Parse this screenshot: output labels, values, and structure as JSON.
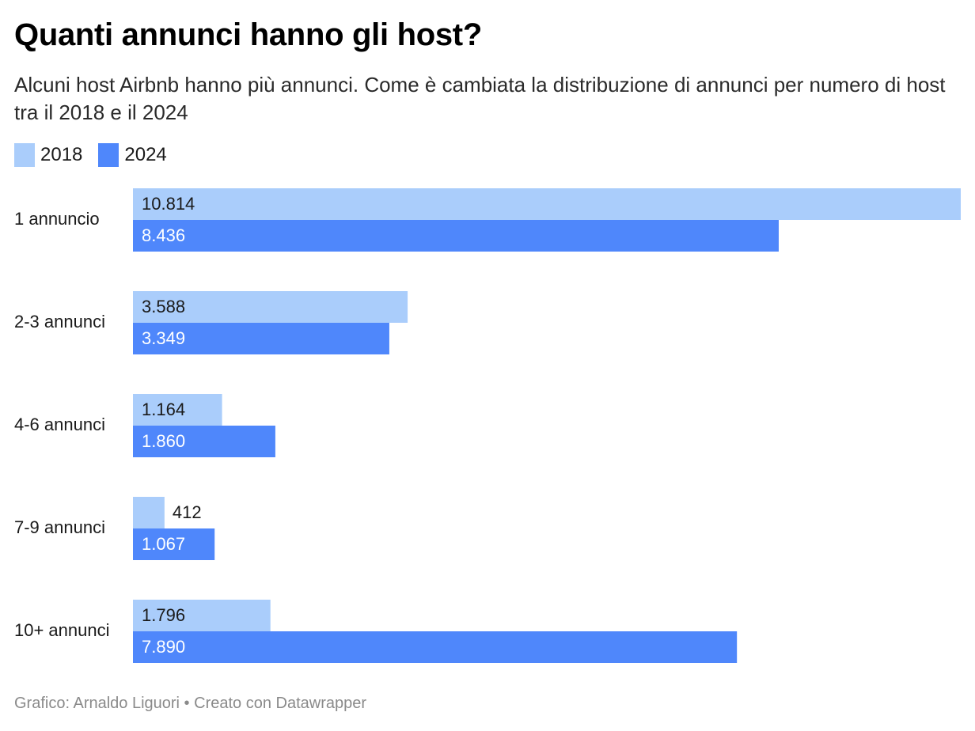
{
  "header": {
    "title": "Quanti annunci hanno gli host?",
    "subtitle": "Alcuni host Airbnb hanno più annunci. Come è cambiata la distribuzione di annunci per numero di host tra il 2018 e il 2024"
  },
  "footer": {
    "credit": "Grafico: Arnaldo Liguori • Creato con Datawrapper"
  },
  "colors": {
    "series_2018": "#aacdfb",
    "series_2024": "#4f87fb",
    "label_dark": "#1a1a1a",
    "label_light": "#ffffff"
  },
  "chart_data": {
    "type": "bar",
    "orientation": "horizontal",
    "categories": [
      "1 annuncio",
      "2-3 annunci",
      "4-6 annunci",
      "7-9 annunci",
      "10+ annunci"
    ],
    "series": [
      {
        "name": "2018",
        "values": [
          10814,
          3588,
          1164,
          412,
          1796
        ],
        "labels": [
          "10.814",
          "3.588",
          "1.164",
          "412",
          "1.796"
        ]
      },
      {
        "name": "2024",
        "values": [
          8436,
          3349,
          1860,
          1067,
          7890
        ],
        "labels": [
          "8.436",
          "3.349",
          "1.860",
          "1.067",
          "7.890"
        ]
      }
    ],
    "xlim": [
      0,
      10814
    ],
    "grid": false,
    "legend": "top-left"
  }
}
